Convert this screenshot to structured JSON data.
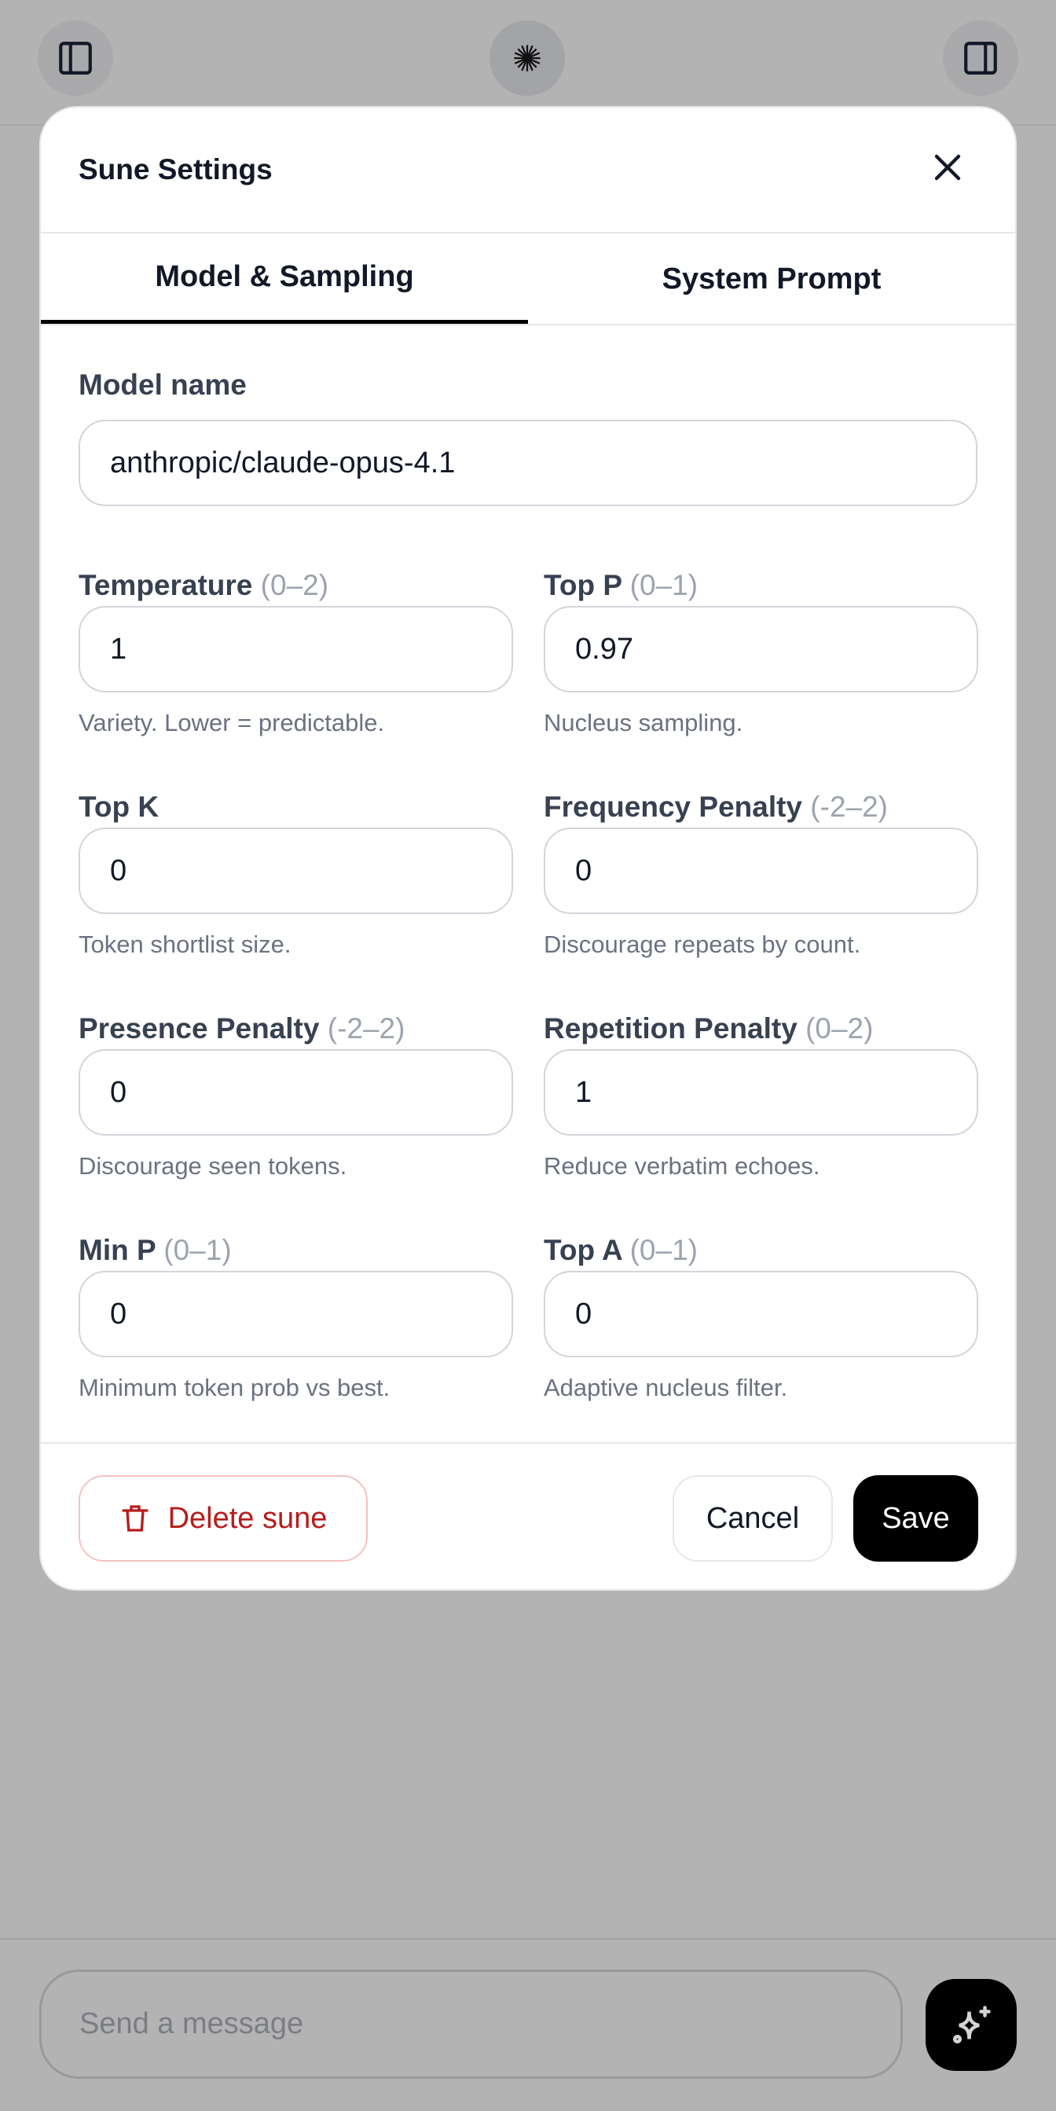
{
  "topbar": {
    "left_icon": "sidebar-left-icon",
    "center_icon": "starburst-logo-icon",
    "right_icon": "sidebar-right-icon"
  },
  "modal": {
    "title": "Sune Settings",
    "close_icon": "close-icon",
    "tabs": [
      {
        "label": "Model & Sampling",
        "active": true
      },
      {
        "label": "System Prompt",
        "active": false
      }
    ],
    "model_name": {
      "label": "Model name",
      "value": "anthropic/claude-opus-4.1"
    },
    "fields": [
      {
        "label": "Temperature",
        "range": "(0–2)",
        "value": "1",
        "help": "Variety. Lower = predictable."
      },
      {
        "label": "Top P",
        "range": "(0–1)",
        "value": "0.97",
        "help": "Nucleus sampling."
      },
      {
        "label": "Top K",
        "range": "",
        "value": "0",
        "help": "Token shortlist size."
      },
      {
        "label": "Frequency Penalty",
        "range": "(-2–2)",
        "value": "0",
        "help": "Discourage repeats by count."
      },
      {
        "label": "Presence Penalty",
        "range": "(-2–2)",
        "value": "0",
        "help": "Discourage seen tokens."
      },
      {
        "label": "Repetition Penalty",
        "range": "(0–2)",
        "value": "1",
        "help": "Reduce verbatim echoes."
      },
      {
        "label": "Min P",
        "range": "(0–1)",
        "value": "0",
        "help": "Minimum token prob vs best."
      },
      {
        "label": "Top A",
        "range": "(0–1)",
        "value": "0",
        "help": "Adaptive nucleus filter."
      }
    ],
    "footer": {
      "delete_label": "Delete sune",
      "cancel_label": "Cancel",
      "save_label": "Save"
    }
  },
  "composer": {
    "placeholder": "Send a message",
    "send_icon": "sparkles-icon"
  },
  "colors": {
    "overlay": "#b3b3b3",
    "danger": "#b91c1c",
    "primary": "#000000"
  }
}
